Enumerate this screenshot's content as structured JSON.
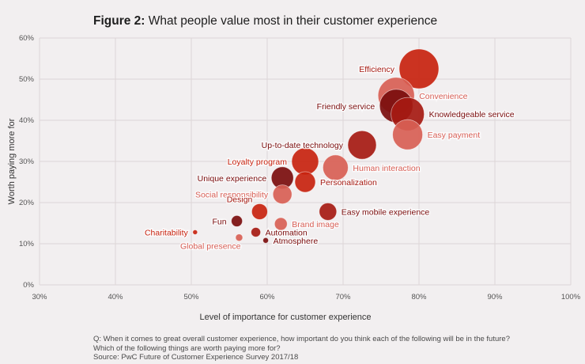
{
  "header": {
    "title_bold": "Figure 2:",
    "title_rest": "What people value most in their customer experience"
  },
  "notes": {
    "line1": "Q: When it comes to great overall customer experience, how important do you think each of the following will be in the future?",
    "line2": "Which of the following things are worth paying more for?",
    "line3": "Source: PwC Future of Customer Experience Survey 2017/18"
  },
  "colors": {
    "background": "#f2eff0",
    "halo": "#ffffff",
    "shades": [
      "#7b0d0d",
      "#a61a12",
      "#c8230f",
      "#d85f55"
    ]
  },
  "chart_data": {
    "type": "scatter",
    "title": "What people value most in their customer experience",
    "xlabel": "Level of importance for customer experience",
    "ylabel": "Worth paying more for",
    "xlim": [
      30,
      100
    ],
    "ylim": [
      0,
      60
    ],
    "xticks": [
      "30%",
      "40%",
      "50%",
      "60%",
      "70%",
      "80%",
      "90%",
      "100%"
    ],
    "yticks": [
      "0%",
      "10%",
      "20%",
      "30%",
      "40%",
      "50%",
      "60%"
    ],
    "grid": true,
    "points": [
      {
        "label": "Efficiency",
        "x": 80,
        "y": 52.5,
        "r": 25,
        "color": "#c8230f",
        "label_side": "left",
        "label_color": "#a61a12"
      },
      {
        "label": "Convenience",
        "x": 77,
        "y": 46,
        "r": 23,
        "color": "#d85f55",
        "label_side": "right",
        "label_color": "#d85f55"
      },
      {
        "label": "Friendly service",
        "x": 77,
        "y": 43.5,
        "r": 21,
        "color": "#7b0d0d",
        "label_side": "left",
        "label_color": "#7b0d0d"
      },
      {
        "label": "Knowledgeable service",
        "x": 78.5,
        "y": 41.5,
        "r": 21,
        "color": "#a61a12",
        "label_side": "right",
        "label_color": "#7b0d0d"
      },
      {
        "label": "Easy payment",
        "x": 78.5,
        "y": 36.5,
        "r": 19,
        "color": "#d85f55",
        "label_side": "right",
        "label_color": "#d85f55"
      },
      {
        "label": "Up-to-date technology",
        "x": 72.5,
        "y": 34,
        "r": 18,
        "color": "#a61a12",
        "label_side": "left",
        "label_color": "#7b0d0d"
      },
      {
        "label": "Loyalty program",
        "x": 65,
        "y": 30,
        "r": 17,
        "color": "#c8230f",
        "label_side": "left",
        "label_color": "#c8230f"
      },
      {
        "label": "Human interaction",
        "x": 69,
        "y": 28.5,
        "r": 16,
        "color": "#d85f55",
        "label_side": "right",
        "label_color": "#d85f55"
      },
      {
        "label": "Unique experience",
        "x": 62,
        "y": 26,
        "r": 14,
        "color": "#7b0d0d",
        "label_side": "left",
        "label_color": "#7b0d0d"
      },
      {
        "label": "Personalization",
        "x": 65,
        "y": 25,
        "r": 13,
        "color": "#c8230f",
        "label_side": "right",
        "label_color": "#a61a12"
      },
      {
        "label": "Social responsibility",
        "x": 62,
        "y": 22,
        "r": 12,
        "color": "#d85f55",
        "label_side": "left",
        "label_color": "#d85f55"
      },
      {
        "label": "Design",
        "x": 59,
        "y": 17.8,
        "r": 10,
        "color": "#c8230f",
        "label_side": "left-up",
        "label_color": "#a61a12"
      },
      {
        "label": "Easy mobile experience",
        "x": 68,
        "y": 17.8,
        "r": 11,
        "color": "#a61a12",
        "label_side": "right",
        "label_color": "#7b0d0d"
      },
      {
        "label": "Fun",
        "x": 56,
        "y": 15.5,
        "r": 7,
        "color": "#7b0d0d",
        "label_side": "left",
        "label_color": "#7b0d0d"
      },
      {
        "label": "Brand image",
        "x": 61.8,
        "y": 14.8,
        "r": 8,
        "color": "#d85f55",
        "label_side": "right",
        "label_color": "#d85f55"
      },
      {
        "label": "Charitability",
        "x": 50.5,
        "y": 12.8,
        "r": 3,
        "color": "#c8230f",
        "label_side": "left",
        "label_color": "#c8230f"
      },
      {
        "label": "Automation",
        "x": 58.5,
        "y": 12.8,
        "r": 6,
        "color": "#a61a12",
        "label_side": "right",
        "label_color": "#7b0d0d"
      },
      {
        "label": "Global presence",
        "x": 56.3,
        "y": 11.5,
        "r": 4.5,
        "color": "#d85f55",
        "label_side": "left-down",
        "label_color": "#d85f55"
      },
      {
        "label": "Atmosphere",
        "x": 59.8,
        "y": 10.8,
        "r": 3.5,
        "color": "#7b0d0d",
        "label_side": "right",
        "label_color": "#7b0d0d"
      }
    ]
  }
}
